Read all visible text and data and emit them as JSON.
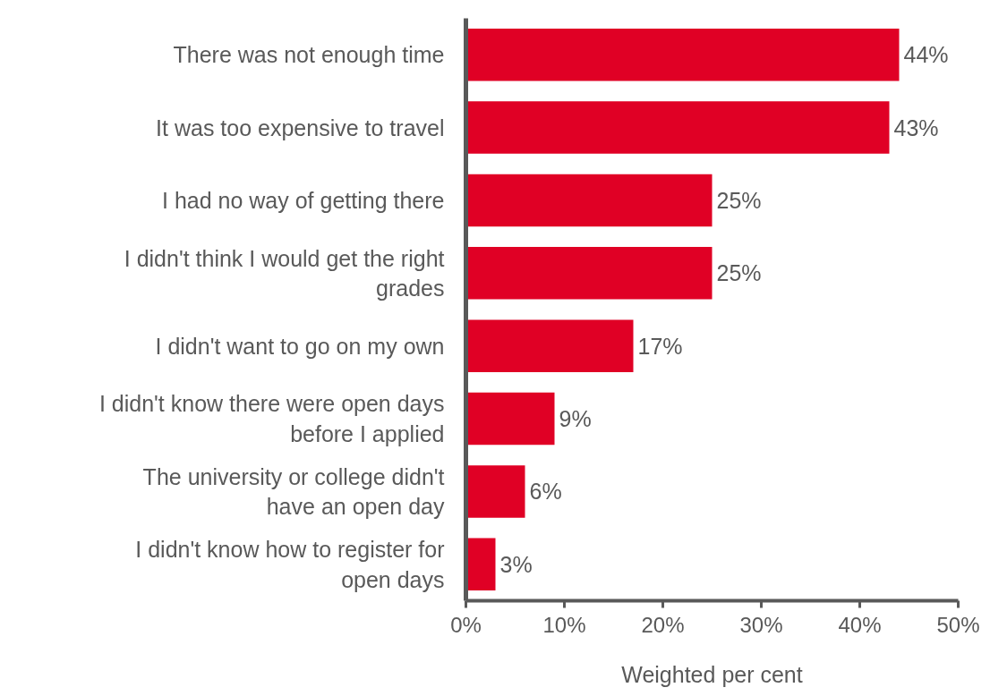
{
  "chart_data": {
    "type": "bar",
    "orientation": "horizontal",
    "xlabel": "Weighted per cent",
    "categories": [
      "There was not enough time",
      "It was too expensive to travel",
      "I had no way of getting there",
      "I didn't think I would get the right grades",
      "I didn't want to go on my own",
      "I didn't know there were open days before I applied",
      "The university or college didn't have an open day",
      "I didn't know how to register for open days"
    ],
    "values": [
      44,
      43,
      25,
      25,
      17,
      9,
      6,
      3
    ],
    "value_labels": [
      "44%",
      "43%",
      "25%",
      "25%",
      "17%",
      "9%",
      "6%",
      "3%"
    ],
    "color": "#e00025",
    "xlim": [
      0,
      50
    ],
    "xticks": [
      {
        "value": 0,
        "label": "0%"
      },
      {
        "value": 10,
        "label": "10%"
      },
      {
        "value": 20,
        "label": "20%"
      },
      {
        "value": 30,
        "label": "30%"
      },
      {
        "value": 40,
        "label": "40%"
      },
      {
        "value": 50,
        "label": "50%"
      }
    ],
    "grid": false
  }
}
